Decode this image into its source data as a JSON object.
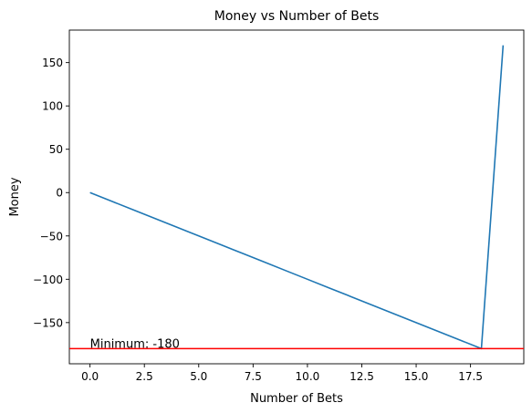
{
  "chart_data": {
    "type": "line",
    "title": "Money vs Number of Bets",
    "xlabel": "Number of Bets",
    "ylabel": "Money",
    "xlim": [
      -0.95,
      19.95
    ],
    "ylim": [
      -197.5,
      187.5
    ],
    "x_ticks": [
      0.0,
      2.5,
      5.0,
      7.5,
      10.0,
      12.5,
      15.0,
      17.5
    ],
    "x_tick_labels": [
      "0.0",
      "2.5",
      "5.0",
      "7.5",
      "10.0",
      "12.5",
      "15.0",
      "17.5"
    ],
    "y_ticks": [
      150,
      100,
      50,
      0,
      -50,
      -100,
      -150
    ],
    "y_tick_labels": [
      "150",
      "100",
      "50",
      "0",
      "−50",
      "−100",
      "−150"
    ],
    "grid": false,
    "series": [
      {
        "color": "#1f77b4",
        "x": [
          0,
          1,
          2,
          3,
          4,
          5,
          6,
          7,
          8,
          9,
          10,
          11,
          12,
          13,
          14,
          15,
          16,
          17,
          18,
          19
        ],
        "y": [
          0,
          -10,
          -20,
          -30,
          -40,
          -50,
          -60,
          -70,
          -80,
          -90,
          -100,
          -110,
          -120,
          -130,
          -140,
          -150,
          -160,
          -170,
          -180,
          170
        ]
      }
    ],
    "hline": {
      "y": -180,
      "color": "#ff0000"
    },
    "annotation": {
      "text": "Minimum: -180",
      "x": 0,
      "y": -180
    }
  }
}
